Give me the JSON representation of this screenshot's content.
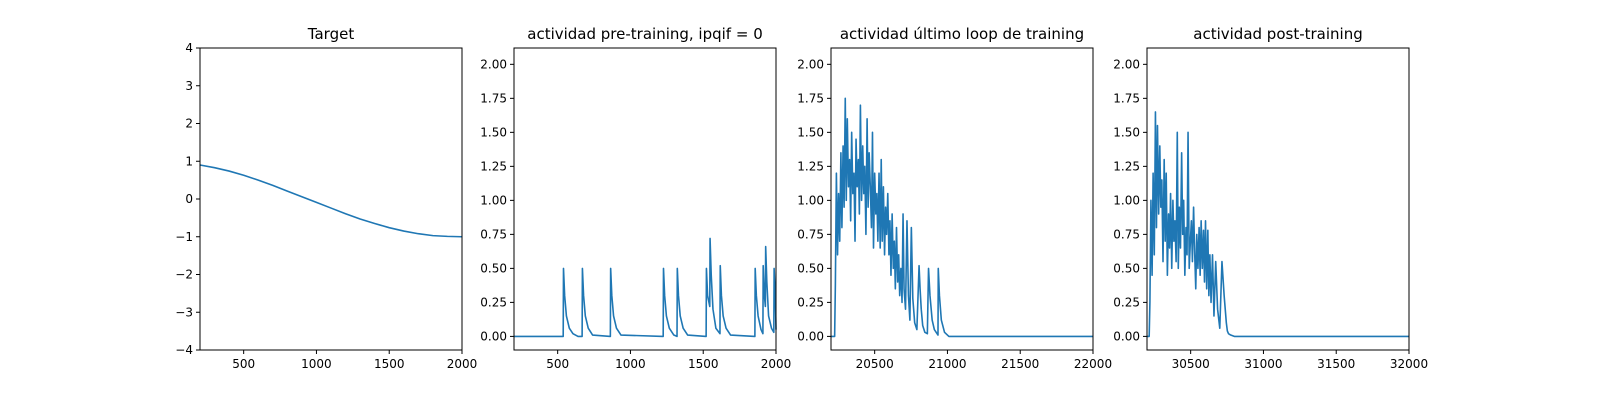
{
  "chart_data": [
    {
      "type": "line",
      "title": "Target",
      "xlabel": "",
      "ylabel": "",
      "xlim": [
        200,
        2000
      ],
      "ylim": [
        -4,
        4
      ],
      "xticks": [
        500,
        1000,
        1500,
        2000
      ],
      "yticks": [
        -4,
        -3,
        -2,
        -1,
        0,
        1,
        2,
        3,
        4
      ],
      "xtick_labels": [
        "500",
        "1000",
        "1500",
        "2000"
      ],
      "ytick_labels": [
        "−4",
        "−3",
        "−2",
        "−1",
        "0",
        "1",
        "2",
        "3",
        "4"
      ],
      "grid": false,
      "series": [
        {
          "color": "#1f77b4",
          "x": [
            200,
            300,
            400,
            500,
            600,
            700,
            800,
            900,
            1000,
            1100,
            1200,
            1300,
            1400,
            1500,
            1600,
            1700,
            1800,
            1900,
            2000
          ],
          "y": [
            0.9,
            0.83,
            0.74,
            0.63,
            0.5,
            0.36,
            0.21,
            0.06,
            -0.09,
            -0.24,
            -0.39,
            -0.53,
            -0.65,
            -0.76,
            -0.85,
            -0.92,
            -0.97,
            -0.99,
            -1.0
          ]
        }
      ]
    },
    {
      "type": "line",
      "title": "actividad pre-training, ipqif = 0",
      "xlabel": "",
      "ylabel": "",
      "xlim": [
        200,
        2000
      ],
      "ylim": [
        -0.1,
        2.12
      ],
      "xticks": [
        500,
        1000,
        1500,
        2000
      ],
      "yticks": [
        0,
        0.25,
        0.5,
        0.75,
        1,
        1.25,
        1.5,
        1.75,
        2
      ],
      "xtick_labels": [
        "500",
        "1000",
        "1500",
        "2000"
      ],
      "ytick_labels": [
        "0.00",
        "0.25",
        "0.50",
        "0.75",
        "1.00",
        "1.25",
        "1.50",
        "1.75",
        "2.00"
      ],
      "grid": false,
      "series": [
        {
          "color": "#1f77b4",
          "x": [
            200,
            538,
            540,
            548,
            560,
            580,
            605,
            640,
            668,
            670,
            678,
            690,
            710,
            740,
            862,
            864,
            872,
            884,
            904,
            935,
            1225,
            1227,
            1235,
            1247,
            1267,
            1298,
            1320,
            1322,
            1330,
            1342,
            1362,
            1393,
            1520,
            1522,
            1530,
            1545,
            1547,
            1555,
            1567,
            1587,
            1615,
            1617,
            1625,
            1637,
            1657,
            1688,
            1855,
            1857,
            1865,
            1877,
            1897,
            1910,
            1912,
            1920,
            1927,
            1929,
            1937,
            1949,
            1969,
            1985,
            1987,
            1995,
            2000
          ],
          "y": [
            0,
            0,
            0.5,
            0.3,
            0.15,
            0.06,
            0.02,
            0,
            0,
            0.5,
            0.3,
            0.15,
            0.06,
            0.01,
            0,
            0.5,
            0.3,
            0.15,
            0.06,
            0.01,
            0,
            0.5,
            0.3,
            0.15,
            0.06,
            0.01,
            0,
            0.5,
            0.3,
            0.15,
            0.06,
            0.01,
            0,
            0.5,
            0.3,
            0.22,
            0.72,
            0.45,
            0.2,
            0.06,
            0.02,
            0.52,
            0.3,
            0.15,
            0.06,
            0.01,
            0,
            0.5,
            0.3,
            0.15,
            0.05,
            0.02,
            0.52,
            0.3,
            0.22,
            0.66,
            0.4,
            0.15,
            0.06,
            0.03,
            0.5,
            0.3,
            0.05
          ]
        }
      ]
    },
    {
      "type": "line",
      "title": "actividad último loop de training",
      "xlabel": "",
      "ylabel": "",
      "xlim": [
        20200,
        22000
      ],
      "ylim": [
        -0.1,
        2.12
      ],
      "xticks": [
        20500,
        21000,
        21500,
        22000
      ],
      "yticks": [
        0,
        0.25,
        0.5,
        0.75,
        1,
        1.25,
        1.5,
        1.75,
        2
      ],
      "xtick_labels": [
        "20500",
        "21000",
        "21500",
        "22000"
      ],
      "ytick_labels": [
        "0.00",
        "0.25",
        "0.50",
        "0.75",
        "1.00",
        "1.25",
        "1.50",
        "1.75",
        "2.00"
      ],
      "grid": false,
      "series": [
        {
          "color": "#1f77b4",
          "x": [
            20200,
            20225,
            20230,
            20237,
            20245,
            20252,
            20260,
            20268,
            20275,
            20283,
            20290,
            20298,
            20305,
            20312,
            20320,
            20328,
            20335,
            20342,
            20350,
            20358,
            20365,
            20372,
            20380,
            20388,
            20395,
            20402,
            20410,
            20418,
            20425,
            20432,
            20440,
            20448,
            20455,
            20462,
            20470,
            20478,
            20485,
            20492,
            20500,
            20508,
            20515,
            20522,
            20530,
            20538,
            20545,
            20552,
            20560,
            20568,
            20575,
            20582,
            20590,
            20598,
            20605,
            20612,
            20620,
            20628,
            20635,
            20642,
            20650,
            20658,
            20665,
            20672,
            20680,
            20688,
            20695,
            20702,
            20712,
            20722,
            20732,
            20742,
            20752,
            20762,
            20775,
            20790,
            20805,
            20812,
            20820,
            20830,
            20845,
            20862,
            20870,
            20880,
            20895,
            20910,
            20935,
            20937,
            20945,
            20958,
            20980,
            21010,
            22000
          ],
          "y": [
            0,
            0,
            0.38,
            1.2,
            0.6,
            1.05,
            0.7,
            1.35,
            0.8,
            1.4,
            0.95,
            1.75,
            1.0,
            1.6,
            1.1,
            1.3,
            0.85,
            1.5,
            1.05,
            1.2,
            0.7,
            1.45,
            1.1,
            1.3,
            0.9,
            1.7,
            1.0,
            1.4,
            1.05,
            1.25,
            0.75,
            1.6,
            0.95,
            1.35,
            1.1,
            0.8,
            1.5,
            0.65,
            1.2,
            0.9,
            1.05,
            0.7,
            1.2,
            0.65,
            1.3,
            0.7,
            1.1,
            0.6,
            0.95,
            0.75,
            1.05,
            0.6,
            0.85,
            0.45,
            0.9,
            0.5,
            0.7,
            0.35,
            0.8,
            0.4,
            0.6,
            0.3,
            0.5,
            0.25,
            0.9,
            0.35,
            0.2,
            0.85,
            0.3,
            0.12,
            0.8,
            0.28,
            0.1,
            0.05,
            0.52,
            0.35,
            0.2,
            0.08,
            0.03,
            0.02,
            0.5,
            0.3,
            0.12,
            0.05,
            0.01,
            0.5,
            0.3,
            0.12,
            0.03,
            0,
            0
          ]
        }
      ]
    },
    {
      "type": "line",
      "title": "actividad post-training",
      "xlabel": "",
      "ylabel": "",
      "xlim": [
        30200,
        32000
      ],
      "ylim": [
        -0.1,
        2.12
      ],
      "xticks": [
        30500,
        31000,
        31500,
        32000
      ],
      "yticks": [
        0,
        0.25,
        0.5,
        0.75,
        1,
        1.25,
        1.5,
        1.75,
        2
      ],
      "xtick_labels": [
        "30500",
        "31000",
        "31500",
        "32000"
      ],
      "ytick_labels": [
        "0.00",
        "0.25",
        "0.50",
        "0.75",
        "1.00",
        "1.25",
        "1.50",
        "1.75",
        "2.00"
      ],
      "grid": false,
      "series": [
        {
          "color": "#1f77b4",
          "x": [
            30200,
            30215,
            30220,
            30227,
            30235,
            30242,
            30250,
            30258,
            30265,
            30272,
            30280,
            30288,
            30295,
            30302,
            30310,
            30318,
            30325,
            30332,
            30340,
            30348,
            30355,
            30362,
            30370,
            30378,
            30385,
            30392,
            30400,
            30408,
            30415,
            30422,
            30430,
            30438,
            30445,
            30452,
            30460,
            30468,
            30475,
            30482,
            30490,
            30498,
            30505,
            30512,
            30520,
            30528,
            30535,
            30542,
            30550,
            30558,
            30565,
            30572,
            30580,
            30588,
            30595,
            30602,
            30610,
            30618,
            30625,
            30632,
            30640,
            30650,
            30660,
            30672,
            30685,
            30700,
            30715,
            30730,
            30745,
            30752,
            30760,
            30775,
            30800,
            30840,
            32000
          ],
          "y": [
            0,
            0,
            0.25,
            1.0,
            0.45,
            1.2,
            0.6,
            1.65,
            0.8,
            1.55,
            0.9,
            1.4,
            0.95,
            1.15,
            0.55,
            1.3,
            0.7,
            1.2,
            0.45,
            0.9,
            0.65,
            1.05,
            0.5,
            1.0,
            0.7,
            0.85,
            0.55,
            1.5,
            0.5,
            0.95,
            0.65,
            1.35,
            0.75,
            1.0,
            0.45,
            0.8,
            0.6,
            1.5,
            0.5,
            0.7,
            0.85,
            0.55,
            0.95,
            0.6,
            0.35,
            0.75,
            0.5,
            0.8,
            0.45,
            0.85,
            0.5,
            0.78,
            0.4,
            0.85,
            0.35,
            0.78,
            0.3,
            0.6,
            0.25,
            0.6,
            0.15,
            0.55,
            0.2,
            0.06,
            0.55,
            0.3,
            0.1,
            0.04,
            0.02,
            0.01,
            0,
            0,
            0
          ]
        }
      ]
    }
  ]
}
